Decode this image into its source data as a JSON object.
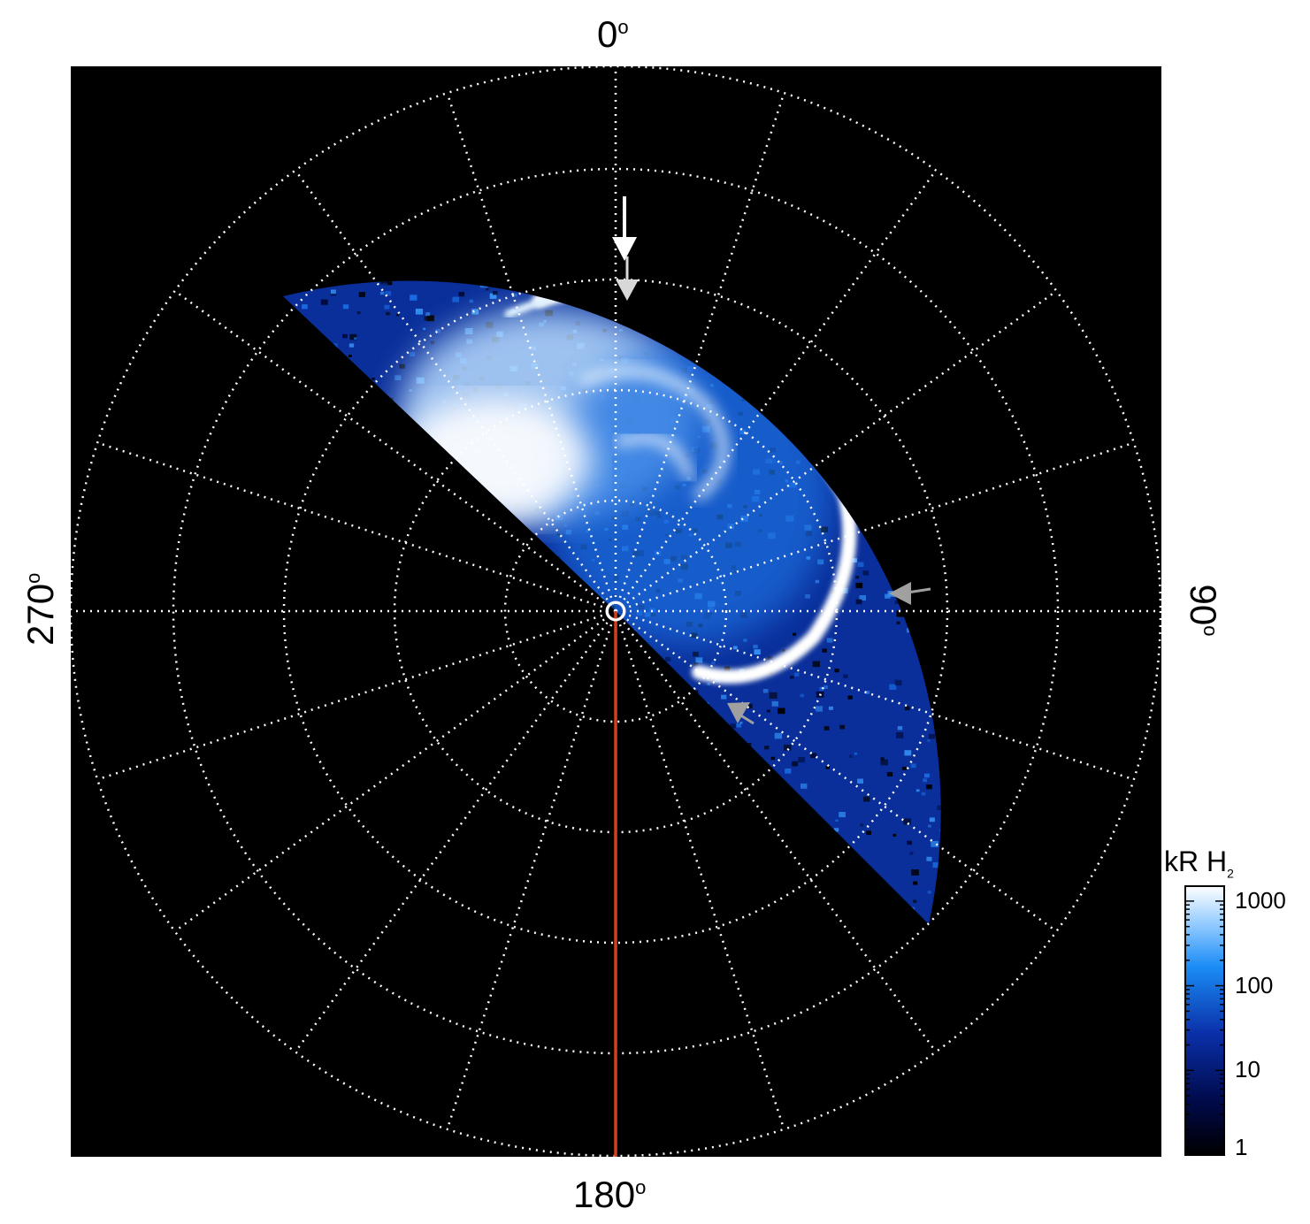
{
  "figure": {
    "labels": {
      "top": "0",
      "right": "90",
      "bottom": "180",
      "left": "270",
      "degree_symbol": "o"
    },
    "colorbar": {
      "title_main": "kR H",
      "title_sub": "2",
      "ticks": [
        "1000",
        "100",
        "10",
        "1"
      ],
      "scale": "log",
      "range": [
        1,
        1500
      ]
    },
    "colors": {
      "background": "#000000",
      "grid": "#ffffff",
      "meridian_line": "#d2401c",
      "aurora_bright": "#ffffff",
      "aurora_mid": "#2f8cf0",
      "aurora_dark": "#0a1f6e"
    },
    "grid": {
      "circles": 5,
      "meridians": 20,
      "style": "dotted"
    },
    "markers": [
      {
        "name": "arrow-top-white",
        "color": "#ffffff"
      },
      {
        "name": "arrow-top-grey",
        "color": "#d8d8d8"
      },
      {
        "name": "arrow-right-grey",
        "color": "#a0a0a0"
      },
      {
        "name": "arrow-lower-grey",
        "color": "#a0a0a0"
      }
    ]
  }
}
